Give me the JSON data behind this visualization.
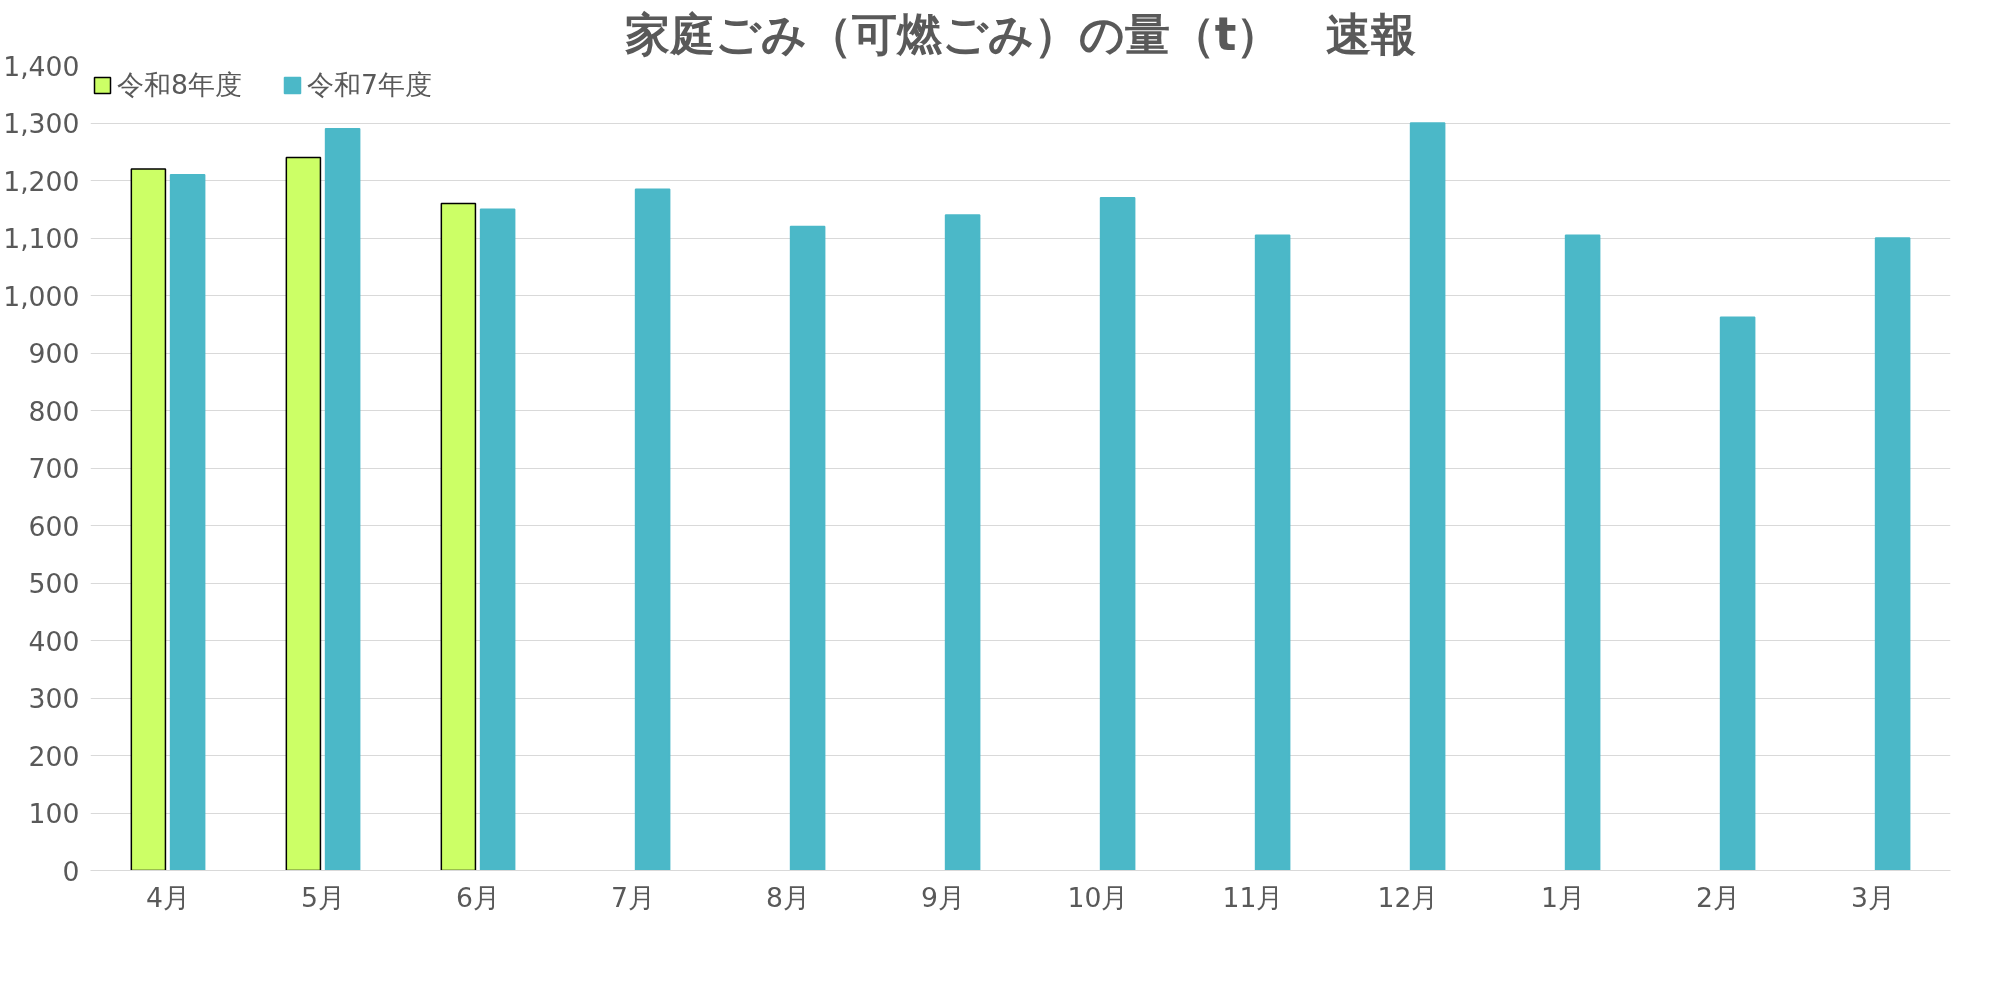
{
  "chart_data": {
    "type": "bar",
    "title": "家庭ごみ（可燃ごみ）の量（t）　速報",
    "categories": [
      "4月",
      "5月",
      "6月",
      "7月",
      "8月",
      "9月",
      "10月",
      "11月",
      "12月",
      "1月",
      "2月",
      "3月"
    ],
    "series": [
      {
        "name": "令和8年度",
        "color": "#ccff66",
        "values": [
          1220,
          1240,
          1160,
          null,
          null,
          null,
          null,
          null,
          null,
          null,
          null,
          null
        ]
      },
      {
        "name": "令和7年度",
        "color": "#4bb8c8",
        "values": [
          1210,
          1290,
          1150,
          1185,
          1120,
          1140,
          1170,
          1105,
          1300,
          1105,
          962,
          1100
        ]
      }
    ],
    "ylim": [
      0,
      1400
    ],
    "yticks": [
      0,
      100,
      200,
      300,
      400,
      500,
      600,
      700,
      800,
      900,
      {
        "value": 1000,
        "label": "1,000"
      },
      {
        "value": 1100,
        "label": "1,100"
      },
      {
        "value": 1200,
        "label": "1,200"
      },
      {
        "value": 1300,
        "label": "1,300"
      },
      {
        "value": 1400,
        "label": "1,400"
      }
    ],
    "grid": "y",
    "legend": "top left"
  }
}
